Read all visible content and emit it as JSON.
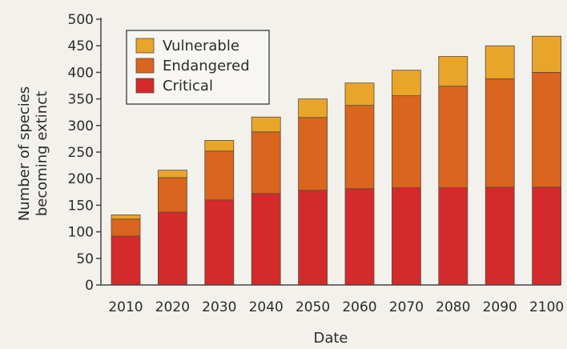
{
  "chart_data": {
    "type": "bar",
    "stacked": true,
    "title": "",
    "xlabel": "Date",
    "ylabel_lines": [
      "Number of species",
      "becoming extinct"
    ],
    "categories": [
      "2010",
      "2020",
      "2030",
      "2040",
      "2050",
      "2060",
      "2070",
      "2080",
      "2090",
      "2100"
    ],
    "series": [
      {
        "name": "Critical",
        "color": "#d42a2b",
        "values": [
          92,
          137,
          160,
          172,
          178,
          181,
          183,
          183,
          184,
          184
        ]
      },
      {
        "name": "Endangered",
        "color": "#d9651e",
        "values": [
          32,
          65,
          92,
          116,
          137,
          157,
          173,
          191,
          204,
          216
        ]
      },
      {
        "name": "Vulnerable",
        "color": "#e8a52a",
        "values": [
          8,
          14,
          20,
          28,
          35,
          42,
          48,
          56,
          62,
          68
        ]
      }
    ],
    "ylim": [
      0,
      500
    ],
    "yticks": [
      0,
      50,
      100,
      150,
      200,
      250,
      300,
      350,
      400,
      450,
      500
    ],
    "grid": false,
    "legend_placement": "top-left",
    "legend_order": [
      "Vulnerable",
      "Endangered",
      "Critical"
    ]
  }
}
